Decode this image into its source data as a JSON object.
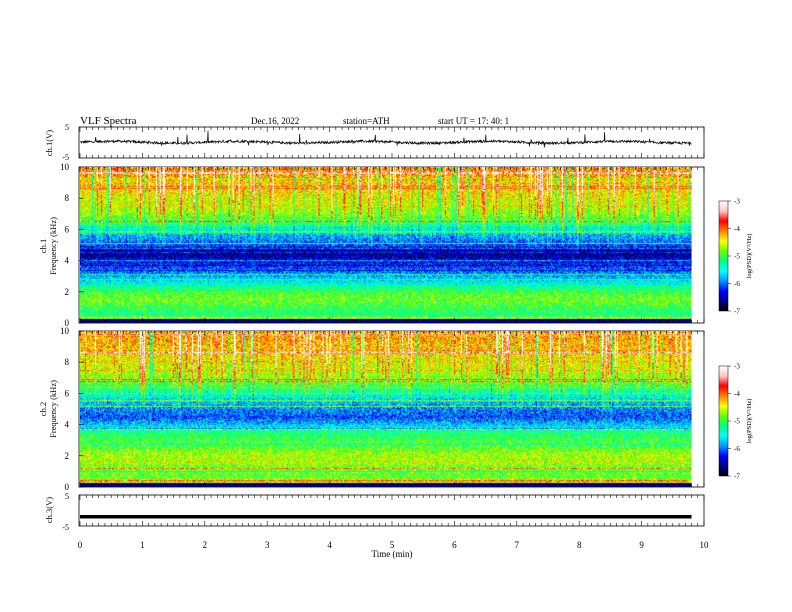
{
  "header": {
    "title": "VLF  Spectra",
    "date": "Dec.16, 2022",
    "station": "station=ATH",
    "start": "start  UT  =    17: 40: 1"
  },
  "colors": {
    "spectrogram_scale": [
      "#000000",
      "#00008b",
      "#0000ff",
      "#0096ff",
      "#00ffff",
      "#00ff80",
      "#64ff00",
      "#ffff00",
      "#ff8000",
      "#ff0000",
      "#ffc8c8",
      "#ffffff"
    ],
    "trace": "#000000"
  },
  "chart_data": [
    {
      "type": "line",
      "name": "ch1-waveform",
      "ylabel": "ch.1(V)",
      "ylim": [
        -5,
        5
      ],
      "yticks": [
        5,
        -5
      ],
      "x_range": [
        0,
        9.8
      ],
      "baseline_v": 0.1,
      "noise_amplitude_v": 0.8
    },
    {
      "type": "heatmap",
      "name": "ch1-spectrogram",
      "ylabel": "ch.1 Frequency (kHz)",
      "ylabel_lines": [
        "ch.1",
        "Frequency  (kHz)"
      ],
      "ylim": [
        0,
        10
      ],
      "yticks": [
        "0",
        "2",
        "4",
        "6",
        "8",
        "10"
      ],
      "x_range": [
        0,
        9.8
      ],
      "colorbar": {
        "label": "log(PSD)(V²/Hz)",
        "range": [
          -7,
          -3
        ],
        "ticks": [
          "-3",
          "-4",
          "-5",
          "-6",
          "-7"
        ]
      },
      "mean_log_psd_by_freq_khz": [
        [
          0.0,
          -4.0
        ],
        [
          0.5,
          -5.2
        ],
        [
          1.0,
          -5.0
        ],
        [
          1.5,
          -4.8
        ],
        [
          2.0,
          -5.0
        ],
        [
          2.5,
          -5.5
        ],
        [
          3.0,
          -5.9
        ],
        [
          3.5,
          -6.2
        ],
        [
          4.0,
          -6.5
        ],
        [
          4.5,
          -6.8
        ],
        [
          5.0,
          -6.2
        ],
        [
          5.5,
          -5.9
        ],
        [
          6.0,
          -5.5
        ],
        [
          6.5,
          -5.0
        ],
        [
          7.0,
          -4.7
        ],
        [
          8.0,
          -4.4
        ],
        [
          9.0,
          -4.2
        ],
        [
          10.0,
          -4.0
        ]
      ]
    },
    {
      "type": "heatmap",
      "name": "ch2-spectrogram",
      "ylabel": "ch.2 Frequency (kHz)",
      "ylabel_lines": [
        "ch.2",
        "Frequency  (kHz)"
      ],
      "ylim": [
        0,
        10
      ],
      "yticks": [
        "0",
        "2",
        "4",
        "6",
        "8",
        "10"
      ],
      "x_range": [
        0,
        9.8
      ],
      "colorbar": {
        "label": "log(PSD)(V²/Hz)",
        "range": [
          -7,
          -3
        ],
        "ticks": [
          "-3",
          "-4",
          "-5",
          "-6",
          "-7"
        ]
      },
      "mean_log_psd_by_freq_khz": [
        [
          0.0,
          -4.0
        ],
        [
          0.5,
          -4.8
        ],
        [
          1.0,
          -4.9
        ],
        [
          1.5,
          -4.7
        ],
        [
          2.0,
          -4.6
        ],
        [
          2.5,
          -4.9
        ],
        [
          3.0,
          -5.0
        ],
        [
          3.5,
          -5.2
        ],
        [
          4.0,
          -5.8
        ],
        [
          4.5,
          -6.2
        ],
        [
          5.0,
          -6.0
        ],
        [
          5.5,
          -5.8
        ],
        [
          6.0,
          -5.4
        ],
        [
          6.5,
          -5.0
        ],
        [
          7.0,
          -4.7
        ],
        [
          8.0,
          -4.4
        ],
        [
          9.0,
          -4.2
        ],
        [
          10.0,
          -4.0
        ]
      ]
    },
    {
      "type": "line",
      "name": "ch3-waveform",
      "ylabel": "ch.3(V)",
      "ylim": [
        -5,
        5
      ],
      "yticks": [
        5,
        -5
      ],
      "x_range": [
        0,
        9.8
      ],
      "baseline_v": -2.0
    }
  ],
  "xaxis": {
    "label": "Time  (min)",
    "ticks": [
      "0",
      "1",
      "2",
      "3",
      "4",
      "5",
      "6",
      "7",
      "8",
      "9",
      "10"
    ],
    "xlim": [
      0,
      10
    ]
  }
}
